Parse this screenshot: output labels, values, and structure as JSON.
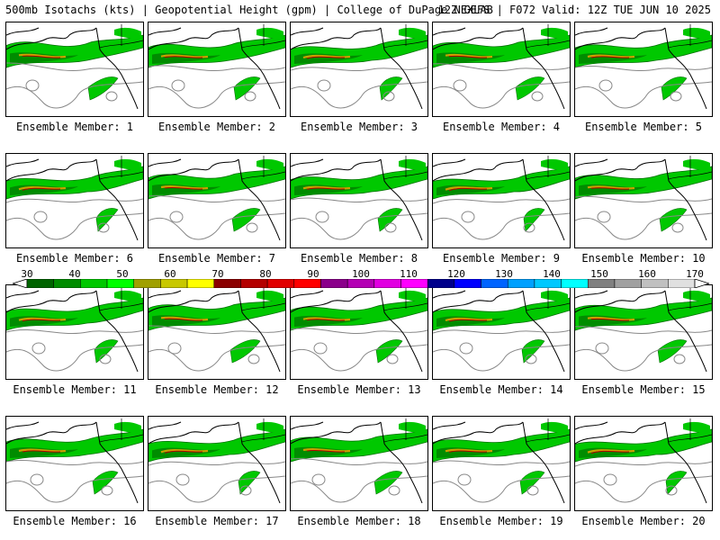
{
  "header": {
    "left": "500mb Isotachs (kts) | Geopotential Height (gpm) | College of DuPage NEXLAB",
    "right": "12Z GEFS | F072 Valid: 12Z TUE JUN 10 2025"
  },
  "members": [
    {
      "label": "Ensemble Member: 1"
    },
    {
      "label": "Ensemble Member: 2"
    },
    {
      "label": "Ensemble Member: 3"
    },
    {
      "label": "Ensemble Member: 4"
    },
    {
      "label": "Ensemble Member: 5"
    },
    {
      "label": "Ensemble Member: 6"
    },
    {
      "label": "Ensemble Member: 7"
    },
    {
      "label": "Ensemble Member: 8"
    },
    {
      "label": "Ensemble Member: 9"
    },
    {
      "label": "Ensemble Member: 10"
    },
    {
      "label": "Ensemble Member: 11"
    },
    {
      "label": "Ensemble Member: 12"
    },
    {
      "label": "Ensemble Member: 13"
    },
    {
      "label": "Ensemble Member: 14"
    },
    {
      "label": "Ensemble Member: 15"
    },
    {
      "label": "Ensemble Member: 16"
    },
    {
      "label": "Ensemble Member: 17"
    },
    {
      "label": "Ensemble Member: 18"
    },
    {
      "label": "Ensemble Member: 19"
    },
    {
      "label": "Ensemble Member: 20"
    }
  ],
  "colorbar": {
    "ticks": [
      "30",
      "40",
      "50",
      "60",
      "70",
      "80",
      "90",
      "100",
      "110",
      "120",
      "130",
      "140",
      "150",
      "160",
      "170"
    ],
    "colors": [
      "#006400",
      "#008c00",
      "#00c800",
      "#00ff00",
      "#a0a000",
      "#c8c800",
      "#ffff00",
      "#8b0000",
      "#b40000",
      "#e10000",
      "#ff0000",
      "#8b008b",
      "#b400b4",
      "#e100e1",
      "#ff00ff",
      "#00008b",
      "#0000ff",
      "#0064ff",
      "#00a0ff",
      "#00c8ff",
      "#00ffff",
      "#808080",
      "#a0a0a0",
      "#c0c0c0",
      "#e0e0e0"
    ]
  }
}
